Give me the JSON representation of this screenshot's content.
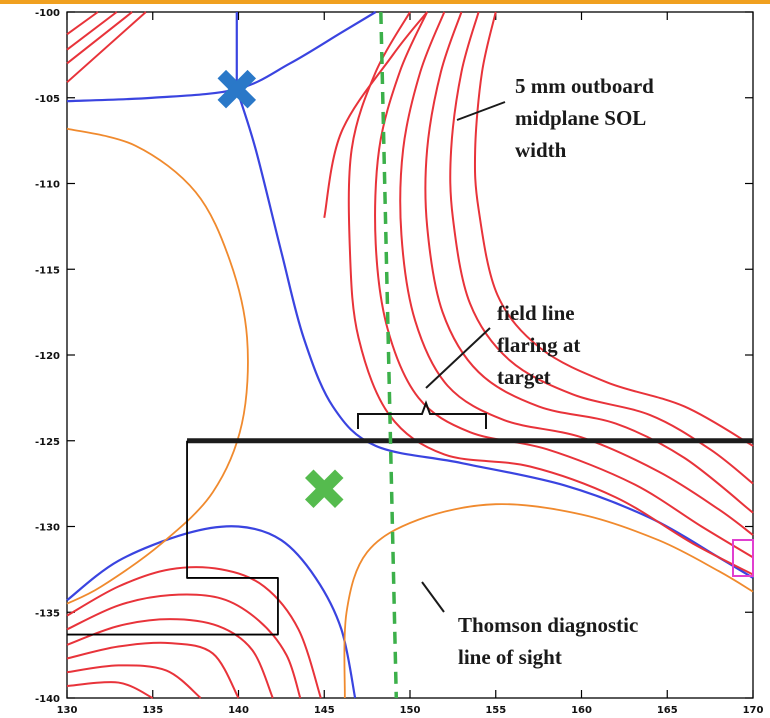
{
  "colors": {
    "banner": "#f0a020",
    "frame": "#000000",
    "separatrix": "#3a44e0",
    "sol_lines": "#e8333a",
    "private_flux": "#f08a2e",
    "thomson": "#3cb04a",
    "upper_xpoint": "#2a78c8",
    "lower_xpoint": "#55bb4e",
    "target": "#1c1c1c",
    "marker": "#e040d0"
  },
  "chart_data": {
    "type": "line",
    "title": "",
    "xlabel": "",
    "ylabel": "",
    "xlim": [
      130,
      170
    ],
    "ylim": [
      -140,
      -100
    ],
    "x_ticks": [
      130,
      135,
      140,
      145,
      150,
      155,
      160,
      165,
      170
    ],
    "y_ticks": [
      -100,
      -105,
      -110,
      -115,
      -120,
      -125,
      -130,
      -135,
      -140
    ],
    "x_tick_labels": [
      "130",
      "135",
      "140",
      "145",
      "150",
      "155",
      "160",
      "165",
      "170"
    ],
    "y_tick_labels": [
      "-100",
      "-105",
      "-110",
      "-115",
      "-120",
      "-125",
      "-130",
      "-135",
      "-140"
    ],
    "grid": false,
    "series": [
      {
        "color_key": "separatrix",
        "points": [
          [
            139.9,
            -100.0
          ],
          [
            139.9,
            -104.5
          ]
        ]
      },
      {
        "color_key": "separatrix",
        "points": [
          [
            130.0,
            -105.2
          ],
          [
            135.0,
            -105.0
          ],
          [
            139.9,
            -104.5
          ],
          [
            143.0,
            -103.0
          ],
          [
            146.0,
            -101.2
          ],
          [
            148.0,
            -100.0
          ]
        ]
      },
      {
        "color_key": "separatrix",
        "points": [
          [
            139.9,
            -104.5
          ],
          [
            141.0,
            -108.0
          ],
          [
            142.5,
            -114.0
          ],
          [
            143.8,
            -119.0
          ],
          [
            145.5,
            -123.0
          ],
          [
            148.0,
            -125.3
          ],
          [
            153.0,
            -126.3
          ],
          [
            159.0,
            -127.6
          ],
          [
            164.0,
            -129.5
          ],
          [
            168.0,
            -131.8
          ],
          [
            170.0,
            -133.0
          ]
        ]
      },
      {
        "color_key": "separatrix",
        "points": [
          [
            130.0,
            -134.3
          ],
          [
            133.0,
            -132.0
          ],
          [
            137.0,
            -130.4
          ],
          [
            140.0,
            -130.0
          ],
          [
            142.5,
            -130.8
          ],
          [
            144.5,
            -133.0
          ],
          [
            146.0,
            -136.0
          ],
          [
            146.8,
            -140.0
          ]
        ]
      },
      {
        "color_key": "private_flux",
        "points": [
          [
            130.0,
            -106.8
          ],
          [
            134.0,
            -107.8
          ],
          [
            137.5,
            -110.5
          ],
          [
            139.5,
            -114.5
          ],
          [
            140.5,
            -119.0
          ],
          [
            140.2,
            -124.0
          ],
          [
            138.5,
            -128.0
          ],
          [
            135.5,
            -131.0
          ],
          [
            132.0,
            -133.5
          ],
          [
            130.0,
            -134.5
          ]
        ]
      },
      {
        "color_key": "private_flux",
        "points": [
          [
            146.2,
            -140.0
          ],
          [
            146.3,
            -135.0
          ],
          [
            147.5,
            -131.5
          ],
          [
            150.5,
            -129.6
          ],
          [
            155.0,
            -128.7
          ],
          [
            160.0,
            -129.3
          ],
          [
            164.5,
            -130.8
          ],
          [
            168.0,
            -132.6
          ],
          [
            170.0,
            -133.8
          ]
        ]
      },
      {
        "color_key": "sol_lines",
        "points": [
          [
            130.0,
            -101.3
          ],
          [
            131.8,
            -100.0
          ]
        ]
      },
      {
        "color_key": "sol_lines",
        "points": [
          [
            130.0,
            -102.2
          ],
          [
            132.9,
            -100.0
          ]
        ]
      },
      {
        "color_key": "sol_lines",
        "points": [
          [
            130.0,
            -103.0
          ],
          [
            133.8,
            -100.0
          ]
        ]
      },
      {
        "color_key": "sol_lines",
        "points": [
          [
            130.0,
            -104.1
          ],
          [
            134.6,
            -100.0
          ]
        ]
      },
      {
        "color_key": "sol_lines",
        "points": [
          [
            145.0,
            -112.0
          ],
          [
            146.0,
            -107.0
          ],
          [
            149.0,
            -102.5
          ],
          [
            151.0,
            -100.0
          ]
        ]
      },
      {
        "color_key": "sol_lines",
        "points": [
          [
            150.0,
            -100.0
          ],
          [
            148.0,
            -103.5
          ],
          [
            146.6,
            -108.0
          ],
          [
            146.5,
            -114.0
          ],
          [
            147.0,
            -119.0
          ],
          [
            148.8,
            -123.5
          ],
          [
            152.0,
            -125.8
          ],
          [
            157.0,
            -126.5
          ],
          [
            162.0,
            -128.3
          ],
          [
            166.5,
            -131.0
          ],
          [
            170.0,
            -132.8
          ]
        ]
      },
      {
        "color_key": "sol_lines",
        "points": [
          [
            151.0,
            -100.0
          ],
          [
            149.4,
            -103.5
          ],
          [
            148.2,
            -108.0
          ],
          [
            148.0,
            -113.5
          ],
          [
            148.7,
            -118.5
          ],
          [
            150.5,
            -122.5
          ],
          [
            153.5,
            -124.5
          ],
          [
            158.0,
            -125.5
          ],
          [
            163.0,
            -127.5
          ],
          [
            167.0,
            -130.0
          ],
          [
            170.0,
            -131.8
          ]
        ]
      },
      {
        "color_key": "sol_lines",
        "points": [
          [
            152.0,
            -100.0
          ],
          [
            150.6,
            -103.5
          ],
          [
            149.6,
            -108.0
          ],
          [
            149.5,
            -113.0
          ],
          [
            150.3,
            -118.0
          ],
          [
            152.2,
            -121.8
          ],
          [
            155.5,
            -123.8
          ],
          [
            160.0,
            -124.8
          ],
          [
            164.5,
            -126.8
          ],
          [
            168.0,
            -129.0
          ],
          [
            170.0,
            -130.5
          ]
        ]
      },
      {
        "color_key": "sol_lines",
        "points": [
          [
            153.0,
            -100.0
          ],
          [
            151.8,
            -103.5
          ],
          [
            151.0,
            -108.0
          ],
          [
            151.0,
            -112.5
          ],
          [
            151.9,
            -117.5
          ],
          [
            154.0,
            -121.0
          ],
          [
            157.5,
            -123.0
          ],
          [
            162.0,
            -124.0
          ],
          [
            166.0,
            -126.0
          ],
          [
            170.0,
            -129.2
          ]
        ]
      },
      {
        "color_key": "sol_lines",
        "points": [
          [
            154.0,
            -100.0
          ],
          [
            153.0,
            -103.5
          ],
          [
            152.4,
            -108.0
          ],
          [
            152.5,
            -112.0
          ],
          [
            153.5,
            -117.0
          ],
          [
            155.8,
            -120.3
          ],
          [
            159.5,
            -122.3
          ],
          [
            164.0,
            -123.5
          ],
          [
            167.5,
            -125.5
          ],
          [
            170.0,
            -127.5
          ]
        ]
      },
      {
        "color_key": "sol_lines",
        "points": [
          [
            155.0,
            -100.0
          ],
          [
            154.2,
            -103.5
          ],
          [
            153.8,
            -108.0
          ],
          [
            154.0,
            -111.5
          ],
          [
            155.1,
            -116.5
          ],
          [
            157.6,
            -119.6
          ],
          [
            161.5,
            -121.6
          ],
          [
            166.0,
            -123.0
          ],
          [
            170.0,
            -125.3
          ]
        ]
      },
      {
        "color_key": "sol_lines",
        "points": [
          [
            130.0,
            -135.2
          ],
          [
            133.0,
            -133.5
          ],
          [
            136.0,
            -132.5
          ],
          [
            139.0,
            -132.5
          ],
          [
            141.5,
            -133.5
          ],
          [
            143.5,
            -136.0
          ],
          [
            144.8,
            -140.0
          ]
        ]
      },
      {
        "color_key": "sol_lines",
        "points": [
          [
            130.0,
            -136.0
          ],
          [
            133.0,
            -134.6
          ],
          [
            136.0,
            -134.0
          ],
          [
            139.0,
            -134.2
          ],
          [
            141.2,
            -135.5
          ],
          [
            142.8,
            -137.5
          ],
          [
            143.6,
            -140.0
          ]
        ]
      },
      {
        "color_key": "sol_lines",
        "points": [
          [
            130.0,
            -136.9
          ],
          [
            133.0,
            -135.8
          ],
          [
            136.0,
            -135.4
          ],
          [
            138.8,
            -135.8
          ],
          [
            140.8,
            -137.2
          ],
          [
            142.0,
            -140.0
          ]
        ]
      },
      {
        "color_key": "sol_lines",
        "points": [
          [
            130.0,
            -137.7
          ],
          [
            133.0,
            -137.0
          ],
          [
            136.0,
            -136.8
          ],
          [
            138.5,
            -137.4
          ],
          [
            140.0,
            -140.0
          ]
        ]
      },
      {
        "color_key": "sol_lines",
        "points": [
          [
            130.0,
            -138.5
          ],
          [
            133.0,
            -138.1
          ],
          [
            135.8,
            -138.4
          ],
          [
            137.8,
            -140.0
          ]
        ]
      },
      {
        "color_key": "sol_lines",
        "points": [
          [
            130.0,
            -139.3
          ],
          [
            133.0,
            -139.1
          ],
          [
            135.0,
            -140.0
          ]
        ]
      },
      {
        "color_key": "target",
        "points": [
          [
            137.0,
            -125.0
          ],
          [
            170.0,
            -125.0
          ]
        ]
      },
      {
        "color_key": "frame",
        "points": [
          [
            137.0,
            -125.0
          ],
          [
            137.0,
            -133.0
          ],
          [
            142.3,
            -133.0
          ],
          [
            142.3,
            -136.3
          ],
          [
            130.0,
            -136.3
          ]
        ]
      },
      {
        "color_key": "thomson",
        "points": [
          [
            148.3,
            -100.0
          ],
          [
            149.2,
            -140.0
          ]
        ]
      }
    ],
    "markers": [
      {
        "color_key": "upper_xpoint",
        "x": 139.9,
        "y": -104.5
      },
      {
        "color_key": "lower_xpoint",
        "x": 145.0,
        "y": -127.8
      }
    ],
    "annotations": [
      {
        "lines": [
          "5 mm outboard",
          "midplane SOL",
          "width"
        ]
      },
      {
        "lines": [
          "field line",
          "flaring at",
          "target"
        ]
      },
      {
        "lines": [
          "Thomson diagnostic",
          "line of sight"
        ]
      }
    ]
  }
}
